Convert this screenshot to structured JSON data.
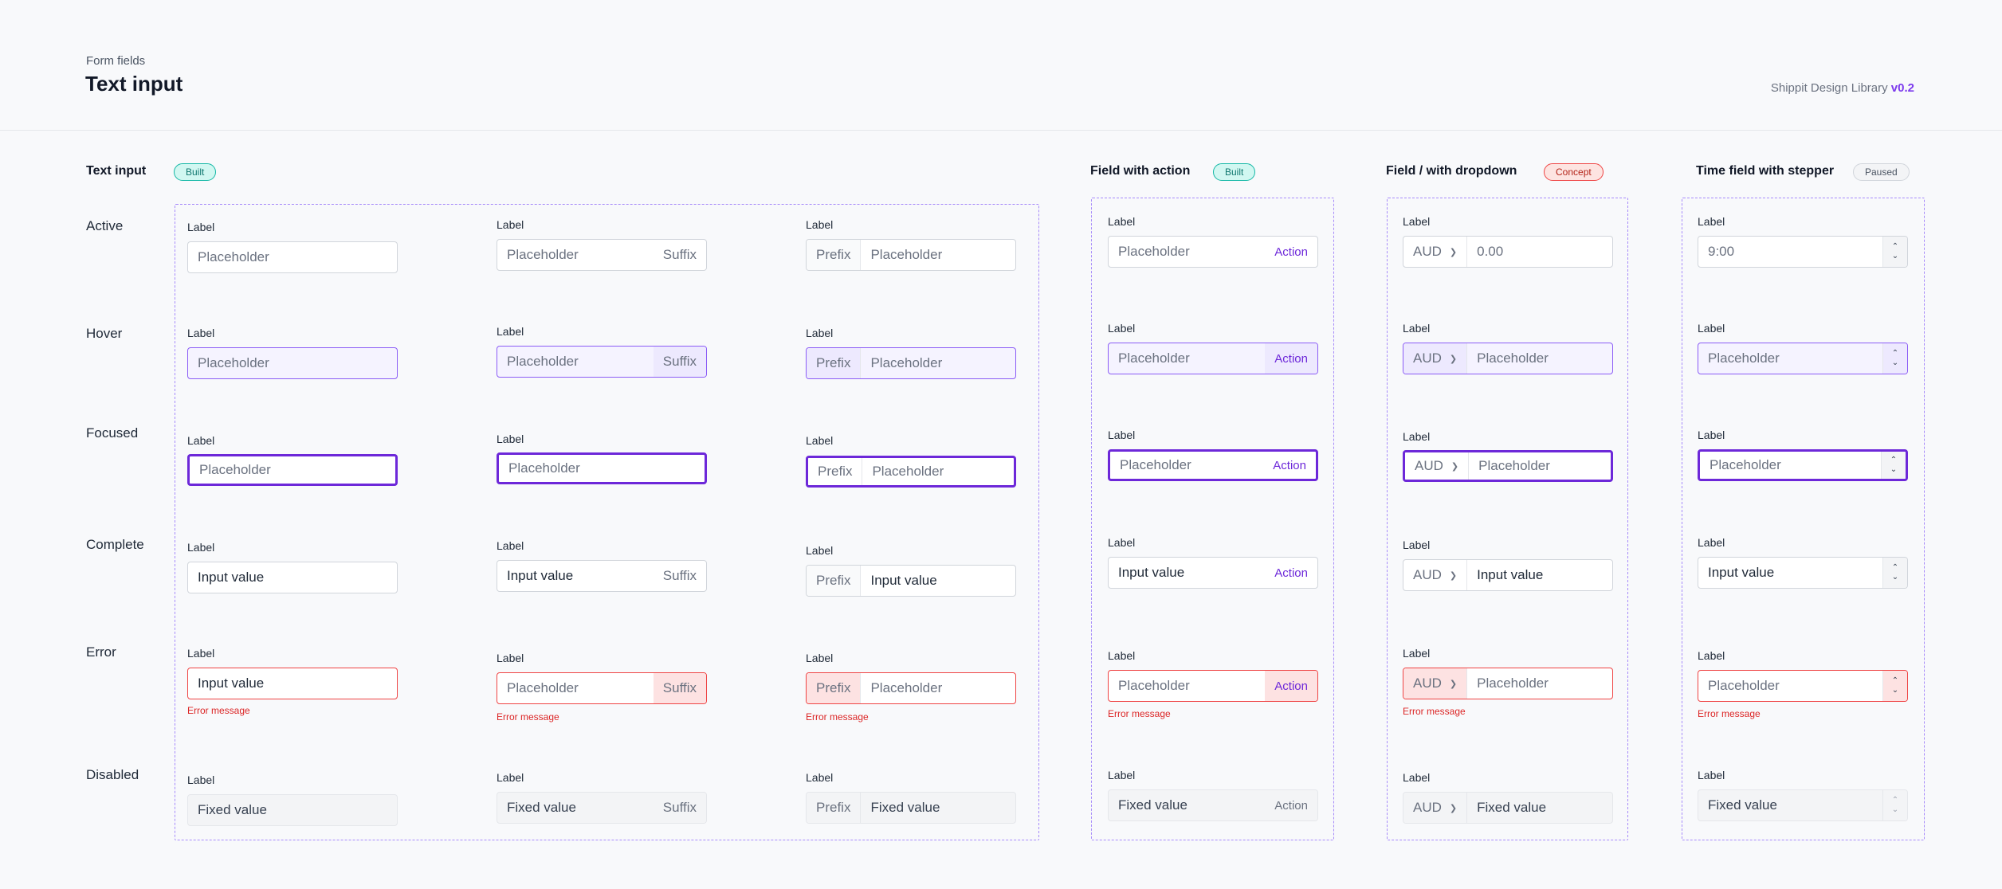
{
  "header": {
    "breadcrumb": "Form fields",
    "title": "Text input",
    "brand": "Shippit Design Library",
    "version": "v0.2"
  },
  "sections": {
    "text_input": {
      "title": "Text input",
      "badge": "Built"
    },
    "field_with_action": {
      "title": "Field with action",
      "badge": "Built"
    },
    "field_with_dropdown": {
      "title": "Field / with dropdown",
      "badge": "Concept"
    },
    "time_field": {
      "title": "Time field with stepper",
      "badge": "Paused"
    }
  },
  "states": [
    "Active",
    "Hover",
    "Focused",
    "Complete",
    "Error",
    "Disabled"
  ],
  "common": {
    "label": "Label",
    "placeholder": "Placeholder",
    "input_value": "Input value",
    "fixed_value": "Fixed value",
    "suffix": "Suffix",
    "prefix": "Prefix",
    "action": "Action",
    "currency": "AUD",
    "amount_value": "0.00",
    "time_value": "9:00",
    "error_message": "Error message"
  },
  "icons": {
    "dropdown": "chevron-down-icon",
    "stepper_up": "chevron-up-icon",
    "stepper_down": "chevron-down-icon"
  },
  "colors": {
    "accent": "#6d28d9",
    "hover_border": "#8b5cf6",
    "error": "#ef4444",
    "built_badge": "#14b8a6",
    "concept_badge": "#ef4444"
  }
}
